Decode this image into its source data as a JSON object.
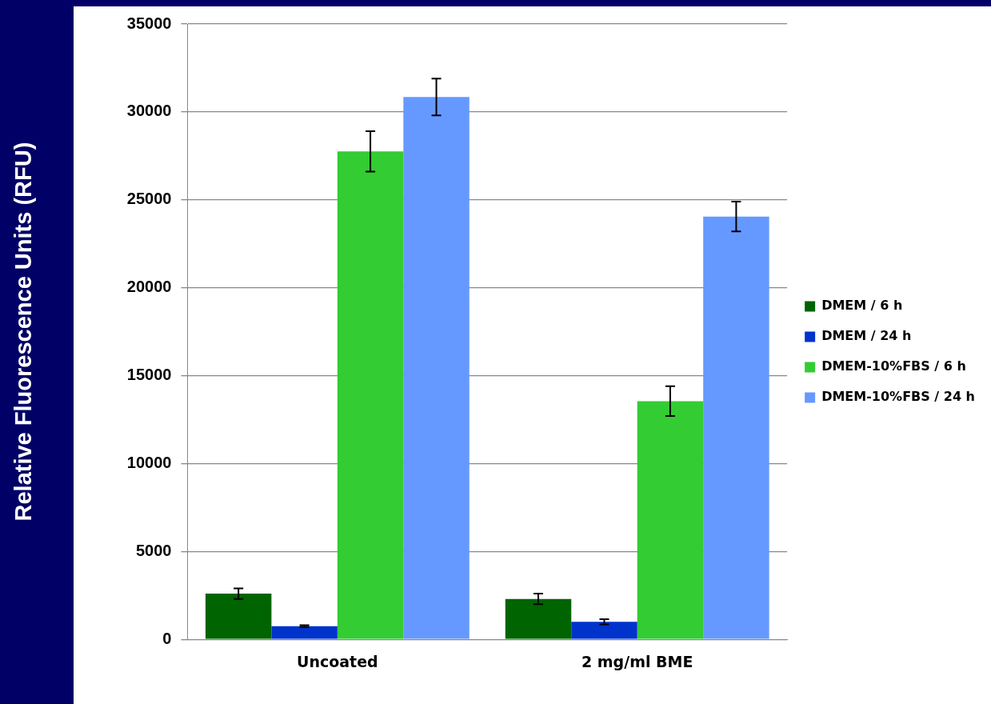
{
  "chart_data": {
    "type": "bar",
    "ylabel": "Relative Fluorescence Units (RFU)",
    "categories": [
      "Uncoated",
      "2 mg/ml BME"
    ],
    "series": [
      {
        "name": "DMEM / 6 h",
        "color": "#006400",
        "values": [
          2600,
          2300
        ],
        "errors": [
          300,
          300
        ]
      },
      {
        "name": "DMEM / 24 h",
        "color": "#0033cc",
        "values": [
          750,
          1000
        ],
        "errors": [
          50,
          150
        ]
      },
      {
        "name": "DMEM-10%FBS / 6 h",
        "color": "#33cc33",
        "values": [
          27750,
          13550
        ],
        "errors": [
          1150,
          850
        ]
      },
      {
        "name": "DMEM-10%FBS / 24 h",
        "color": "#6699ff",
        "values": [
          30850,
          24050
        ],
        "errors": [
          1050,
          850
        ]
      }
    ],
    "ylim": [
      0,
      35000
    ],
    "yticks": [
      0,
      5000,
      10000,
      15000,
      20000,
      25000,
      30000,
      35000
    ],
    "grid": "y",
    "legend": "right"
  }
}
